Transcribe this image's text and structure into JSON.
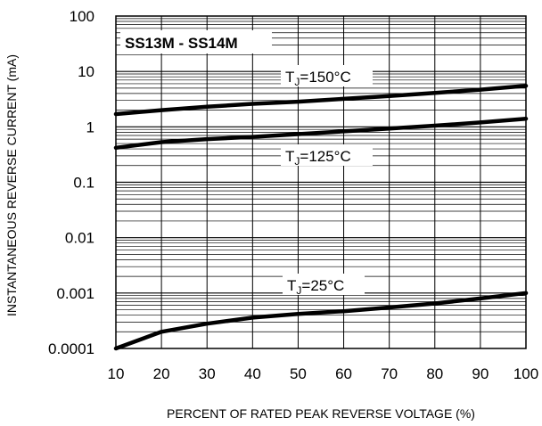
{
  "chart_data": {
    "type": "line",
    "title": "SS13M - SS14M",
    "xlabel": "PERCENT OF RATED PEAK REVERSE VOLTAGE (%)",
    "ylabel": "INSTANTANEOUS REVERSE CURRENT (mA)",
    "x_scale": "linear",
    "y_scale": "log",
    "xlim": [
      10,
      100
    ],
    "ylim": [
      0.0001,
      100
    ],
    "x_ticks": [
      "10",
      "20",
      "30",
      "40",
      "50",
      "60",
      "70",
      "80",
      "90",
      "100"
    ],
    "y_ticks": [
      "100",
      "10",
      "1",
      "0.1",
      "0.01",
      "0.001",
      "0.0001"
    ],
    "grid": true,
    "legend": "none",
    "x": [
      10,
      20,
      30,
      40,
      50,
      60,
      70,
      80,
      90,
      100
    ],
    "series": [
      {
        "name": "TJ=150°C",
        "label_main": "T",
        "label_sub": "J",
        "label_rest": "=150°C",
        "values": [
          1.7,
          2.0,
          2.3,
          2.6,
          2.85,
          3.2,
          3.6,
          4.1,
          4.7,
          5.5
        ]
      },
      {
        "name": "TJ=125°C",
        "label_main": "T",
        "label_sub": "J",
        "label_rest": "=125°C",
        "values": [
          0.42,
          0.53,
          0.6,
          0.66,
          0.74,
          0.83,
          0.93,
          1.05,
          1.2,
          1.4
        ]
      },
      {
        "name": "TJ=25°C",
        "label_main": "T",
        "label_sub": "J",
        "label_rest": "=25°C",
        "values": [
          0.0001,
          0.0002,
          0.00028,
          0.00036,
          0.00042,
          0.00047,
          0.00055,
          0.00065,
          0.0008,
          0.001
        ]
      }
    ],
    "line_color": "#000000"
  }
}
